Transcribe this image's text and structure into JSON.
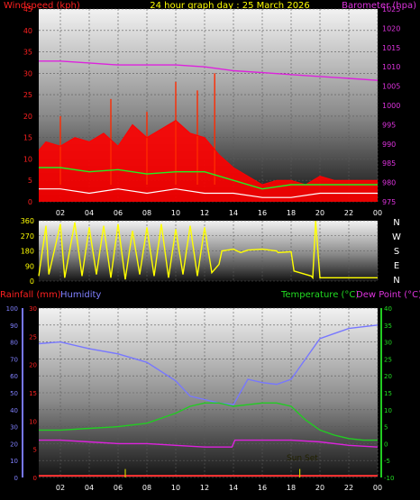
{
  "header": {
    "left": "Windspeed (kph)",
    "center": "24 hour graph day : 25 March 2026",
    "right": "Barometer (hpa)"
  },
  "colors": {
    "windspeed": "#ff0000",
    "gust": "#ff2a00",
    "avg_speed": "#22ee22",
    "baseline": "#ffffff",
    "barometer": "#dd22dd",
    "direction": "#ffff00",
    "rainfall": "#ff3333",
    "humidity": "#7777ff",
    "temperature": "#22cc22",
    "dewpoint": "#dd22dd",
    "sunset": "#cccc00"
  },
  "x_ticks": [
    "02",
    "04",
    "06",
    "08",
    "10",
    "12",
    "14",
    "16",
    "18",
    "20",
    "22",
    "00"
  ],
  "wind_panel": {
    "left_ticks": [
      "0",
      "5",
      "10",
      "15",
      "20",
      "25",
      "30",
      "35",
      "40",
      "45"
    ],
    "right_ticks": [
      "975",
      "980",
      "985",
      "990",
      "995",
      "1000",
      "1005",
      "1010",
      "1015",
      "1020",
      "1025"
    ]
  },
  "dir_panel": {
    "left_ticks": [
      "0",
      "90",
      "180",
      "270",
      "360"
    ],
    "compass": [
      "N",
      "W",
      "S",
      "E",
      "N"
    ]
  },
  "bottom_panel": {
    "rain_label": "Rainfall (mm)",
    "humidity_label": "Humidity",
    "temp_label": "Temperature (°C)",
    "dew_label": "Dew Point (°C)",
    "sunset_label": "Sun Set",
    "hum_ticks": [
      "0",
      "10",
      "20",
      "30",
      "40",
      "50",
      "60",
      "70",
      "80",
      "90",
      "100"
    ],
    "rain_ticks": [
      "0",
      "5",
      "10",
      "15",
      "20",
      "25",
      "30"
    ],
    "temp_ticks": [
      "-10",
      "-5",
      "0",
      "5",
      "10",
      "15",
      "20",
      "25",
      "30",
      "35",
      "40"
    ]
  },
  "chart_data": [
    {
      "type": "line",
      "title": "24 hour graph day : 25 March 2026",
      "x_unit": "hour",
      "xlim": [
        0.5,
        24
      ],
      "ylabel": "Windspeed (kph)",
      "ylim": [
        0,
        45
      ],
      "y2label": "Barometer (hpa)",
      "y2lim": [
        975,
        1025
      ],
      "series": [
        {
          "name": "Barometer (hpa)",
          "axis": "right",
          "x": [
            0.5,
            2,
            4,
            6,
            8,
            10,
            12,
            14,
            16,
            18,
            20,
            22,
            24
          ],
          "values": [
            1011.5,
            1011.5,
            1011,
            1010.5,
            1010.5,
            1010.5,
            1010,
            1009,
            1008.5,
            1008,
            1007.5,
            1007,
            1006.5
          ]
        },
        {
          "name": "Windspeed",
          "x": [
            0.5,
            1,
            2,
            3,
            4,
            5,
            6,
            7,
            8,
            9,
            10,
            11,
            12,
            13,
            14,
            15,
            16,
            17,
            18,
            19,
            20,
            21,
            22,
            23,
            24
          ],
          "values": [
            12,
            14,
            13,
            15,
            14,
            16,
            13,
            18,
            15,
            17,
            19,
            16,
            15,
            11,
            8,
            6,
            4,
            5,
            5,
            4,
            6,
            5,
            5,
            5,
            5
          ],
          "peaks": [
            [
              2.0,
              20
            ],
            [
              5.5,
              24
            ],
            [
              8.0,
              21
            ],
            [
              10.0,
              28
            ],
            [
              11.5,
              26
            ],
            [
              12.7,
              30
            ]
          ]
        },
        {
          "name": "Avg wind",
          "x": [
            0.5,
            2,
            4,
            6,
            8,
            10,
            12,
            14,
            16,
            18,
            20,
            22,
            24
          ],
          "values": [
            8,
            8,
            7,
            7.5,
            6.5,
            7,
            7,
            5,
            3,
            4,
            4,
            4,
            4
          ]
        },
        {
          "name": "Low wind",
          "x": [
            0.5,
            2,
            4,
            6,
            8,
            10,
            12,
            14,
            16,
            18,
            20,
            22,
            24
          ],
          "values": [
            3,
            3,
            2,
            3,
            2,
            3,
            2,
            2,
            1,
            1,
            2,
            2,
            2
          ]
        }
      ]
    },
    {
      "type": "line",
      "title": "",
      "x_unit": "hour",
      "xlim": [
        0.5,
        24
      ],
      "ylabel": "",
      "ylim": [
        0,
        360
      ],
      "series": [
        {
          "name": "Wind direction",
          "x": [
            0.5,
            1.0,
            1.2,
            2.0,
            2.3,
            3.0,
            3.5,
            4.0,
            4.5,
            5.0,
            5.5,
            6.0,
            6.5,
            7.0,
            7.5,
            8.0,
            8.5,
            9.0,
            9.5,
            10.0,
            10.5,
            11.0,
            11.5,
            12.0,
            12.5,
            13.0,
            13.2,
            14.0,
            14.5,
            15.0,
            16.0,
            17.0,
            17.1,
            18.0,
            18.2,
            19.0,
            19.4,
            19.5,
            19.7,
            20.0,
            22.0,
            24.0
          ],
          "values": [
            30,
            330,
            40,
            340,
            20,
            350,
            30,
            320,
            40,
            330,
            20,
            340,
            10,
            300,
            40,
            320,
            30,
            340,
            20,
            310,
            40,
            330,
            30,
            320,
            50,
            100,
            180,
            190,
            170,
            185,
            190,
            180,
            170,
            175,
            60,
            40,
            30,
            20,
            360,
            20,
            20,
            20
          ]
        }
      ]
    },
    {
      "type": "line",
      "title": "",
      "x_unit": "hour",
      "xlim": [
        0.5,
        24
      ],
      "ylabel": "Humidity",
      "ylim": [
        0,
        100
      ],
      "y2label": "Temperature (°C)",
      "y2lim": [
        -10,
        40
      ],
      "series": [
        {
          "name": "Humidity",
          "x": [
            0.5,
            2,
            4,
            6,
            8,
            10,
            11,
            12,
            13,
            14,
            15,
            16,
            17,
            18,
            19,
            20,
            21,
            22,
            23,
            24
          ],
          "values": [
            79,
            80,
            76,
            73,
            68,
            57,
            48,
            46,
            44,
            43,
            58,
            56,
            55,
            58,
            70,
            82,
            85,
            88,
            89,
            90
          ]
        },
        {
          "name": "Temperature (°C)",
          "axis": "right",
          "x": [
            0.5,
            2,
            4,
            6,
            8,
            10,
            11,
            12,
            13,
            14,
            15,
            16,
            17,
            18,
            19,
            20,
            21,
            22,
            23,
            24
          ],
          "values": [
            4,
            4,
            4.5,
            5,
            6,
            9,
            11,
            12,
            12,
            11,
            11.5,
            12,
            12,
            11,
            7,
            4,
            2.5,
            1.5,
            1,
            1
          ]
        },
        {
          "name": "Dew Point (°C)",
          "axis": "right",
          "x": [
            0.5,
            2,
            4,
            6,
            8,
            10,
            12,
            13.9,
            14.1,
            16,
            18,
            20,
            22,
            24
          ],
          "values": [
            1,
            1,
            0.5,
            0,
            0,
            -0.5,
            -1,
            -1,
            1,
            1,
            1,
            0.5,
            -0.5,
            -1
          ]
        },
        {
          "name": "Rainfall (mm)",
          "x": [
            0.5,
            24
          ],
          "values": [
            0.3,
            0.3
          ]
        },
        {
          "name": "Solar markers",
          "x": [
            6.5,
            18.6
          ],
          "values": [
            1.5,
            1.5
          ]
        }
      ]
    }
  ]
}
